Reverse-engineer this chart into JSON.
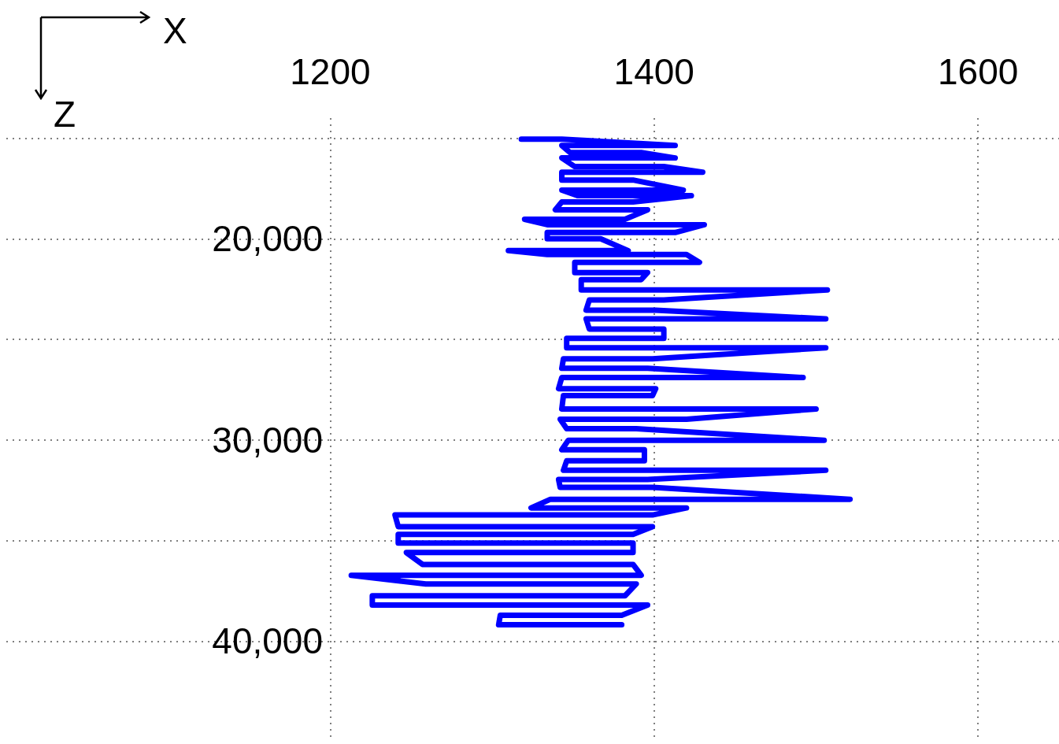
{
  "chart_data": {
    "type": "line",
    "xlabel": "X",
    "ylabel": "Z",
    "xlim": [
      1000,
      1650
    ],
    "xticks": [
      1200,
      1400,
      1600
    ],
    "ylim": [
      45000,
      14000
    ],
    "yticks": [
      {
        "value": 15000,
        "label": null
      },
      {
        "value": 20000,
        "label": "20,000"
      },
      {
        "value": 25000,
        "label": null
      },
      {
        "value": 30000,
        "label": "30,000"
      },
      {
        "value": 35000,
        "label": null
      },
      {
        "value": 40000,
        "label": "40,000"
      }
    ],
    "grid": true,
    "marker": "none",
    "line_style": "solid",
    "series": [
      {
        "color": "#0000ff",
        "x": [
          1318,
          1343,
          1413,
          1343,
          1348,
          1392,
          1413,
          1343,
          1351,
          1406,
          1430,
          1343,
          1343,
          1387,
          1418,
          1343,
          1353,
          1423,
          1387,
          1343,
          1339,
          1396,
          1382,
          1320,
          1334,
          1431,
          1413,
          1334,
          1334,
          1367,
          1384,
          1310,
          1334,
          1420,
          1428,
          1351,
          1351,
          1396,
          1392,
          1355,
          1355,
          1507,
          1406,
          1360,
          1358,
          1401,
          1506,
          1358,
          1360,
          1406,
          1406,
          1346,
          1346,
          1506,
          1399,
          1344,
          1343,
          1396,
          1492,
          1343,
          1341,
          1401,
          1399,
          1344,
          1343,
          1500,
          1420,
          1342,
          1346,
          1389,
          1505,
          1347,
          1343,
          1394,
          1394,
          1346,
          1344,
          1506,
          1396,
          1341,
          1342,
          1399,
          1521,
          1336,
          1324,
          1420,
          1399,
          1240,
          1242,
          1399,
          1387,
          1242,
          1242,
          1387,
          1387,
          1247,
          1257,
          1387,
          1392,
          1213,
          1259,
          1389,
          1382,
          1226,
          1226,
          1396,
          1380,
          1305,
          1304,
          1380
        ],
        "values": [
          15050,
          15050,
          15360,
          15360,
          15710,
          15710,
          15980,
          15980,
          16410,
          16410,
          16690,
          16690,
          17080,
          17080,
          17580,
          17580,
          17860,
          17860,
          18170,
          18170,
          18560,
          18560,
          19030,
          19030,
          19300,
          19300,
          19690,
          19690,
          20000,
          20000,
          20590,
          20590,
          20780,
          20780,
          21170,
          21170,
          21680,
          21680,
          22030,
          22030,
          22540,
          22540,
          23040,
          23040,
          23550,
          23550,
          23980,
          23980,
          24490,
          24490,
          24950,
          24950,
          25420,
          25420,
          25970,
          25970,
          26440,
          26440,
          26900,
          26900,
          27450,
          27450,
          27800,
          27800,
          28460,
          28460,
          28970,
          28970,
          29440,
          29440,
          30020,
          30020,
          30490,
          30490,
          31040,
          31040,
          31510,
          31510,
          31970,
          31970,
          32360,
          32360,
          32950,
          32950,
          33380,
          33380,
          33730,
          33730,
          34310,
          34310,
          34700,
          34700,
          35130,
          35130,
          35600,
          35600,
          36190,
          36190,
          36730,
          36730,
          37160,
          37160,
          37750,
          37750,
          38210,
          38210,
          38720,
          38720,
          39190,
          39190
        ]
      }
    ]
  }
}
